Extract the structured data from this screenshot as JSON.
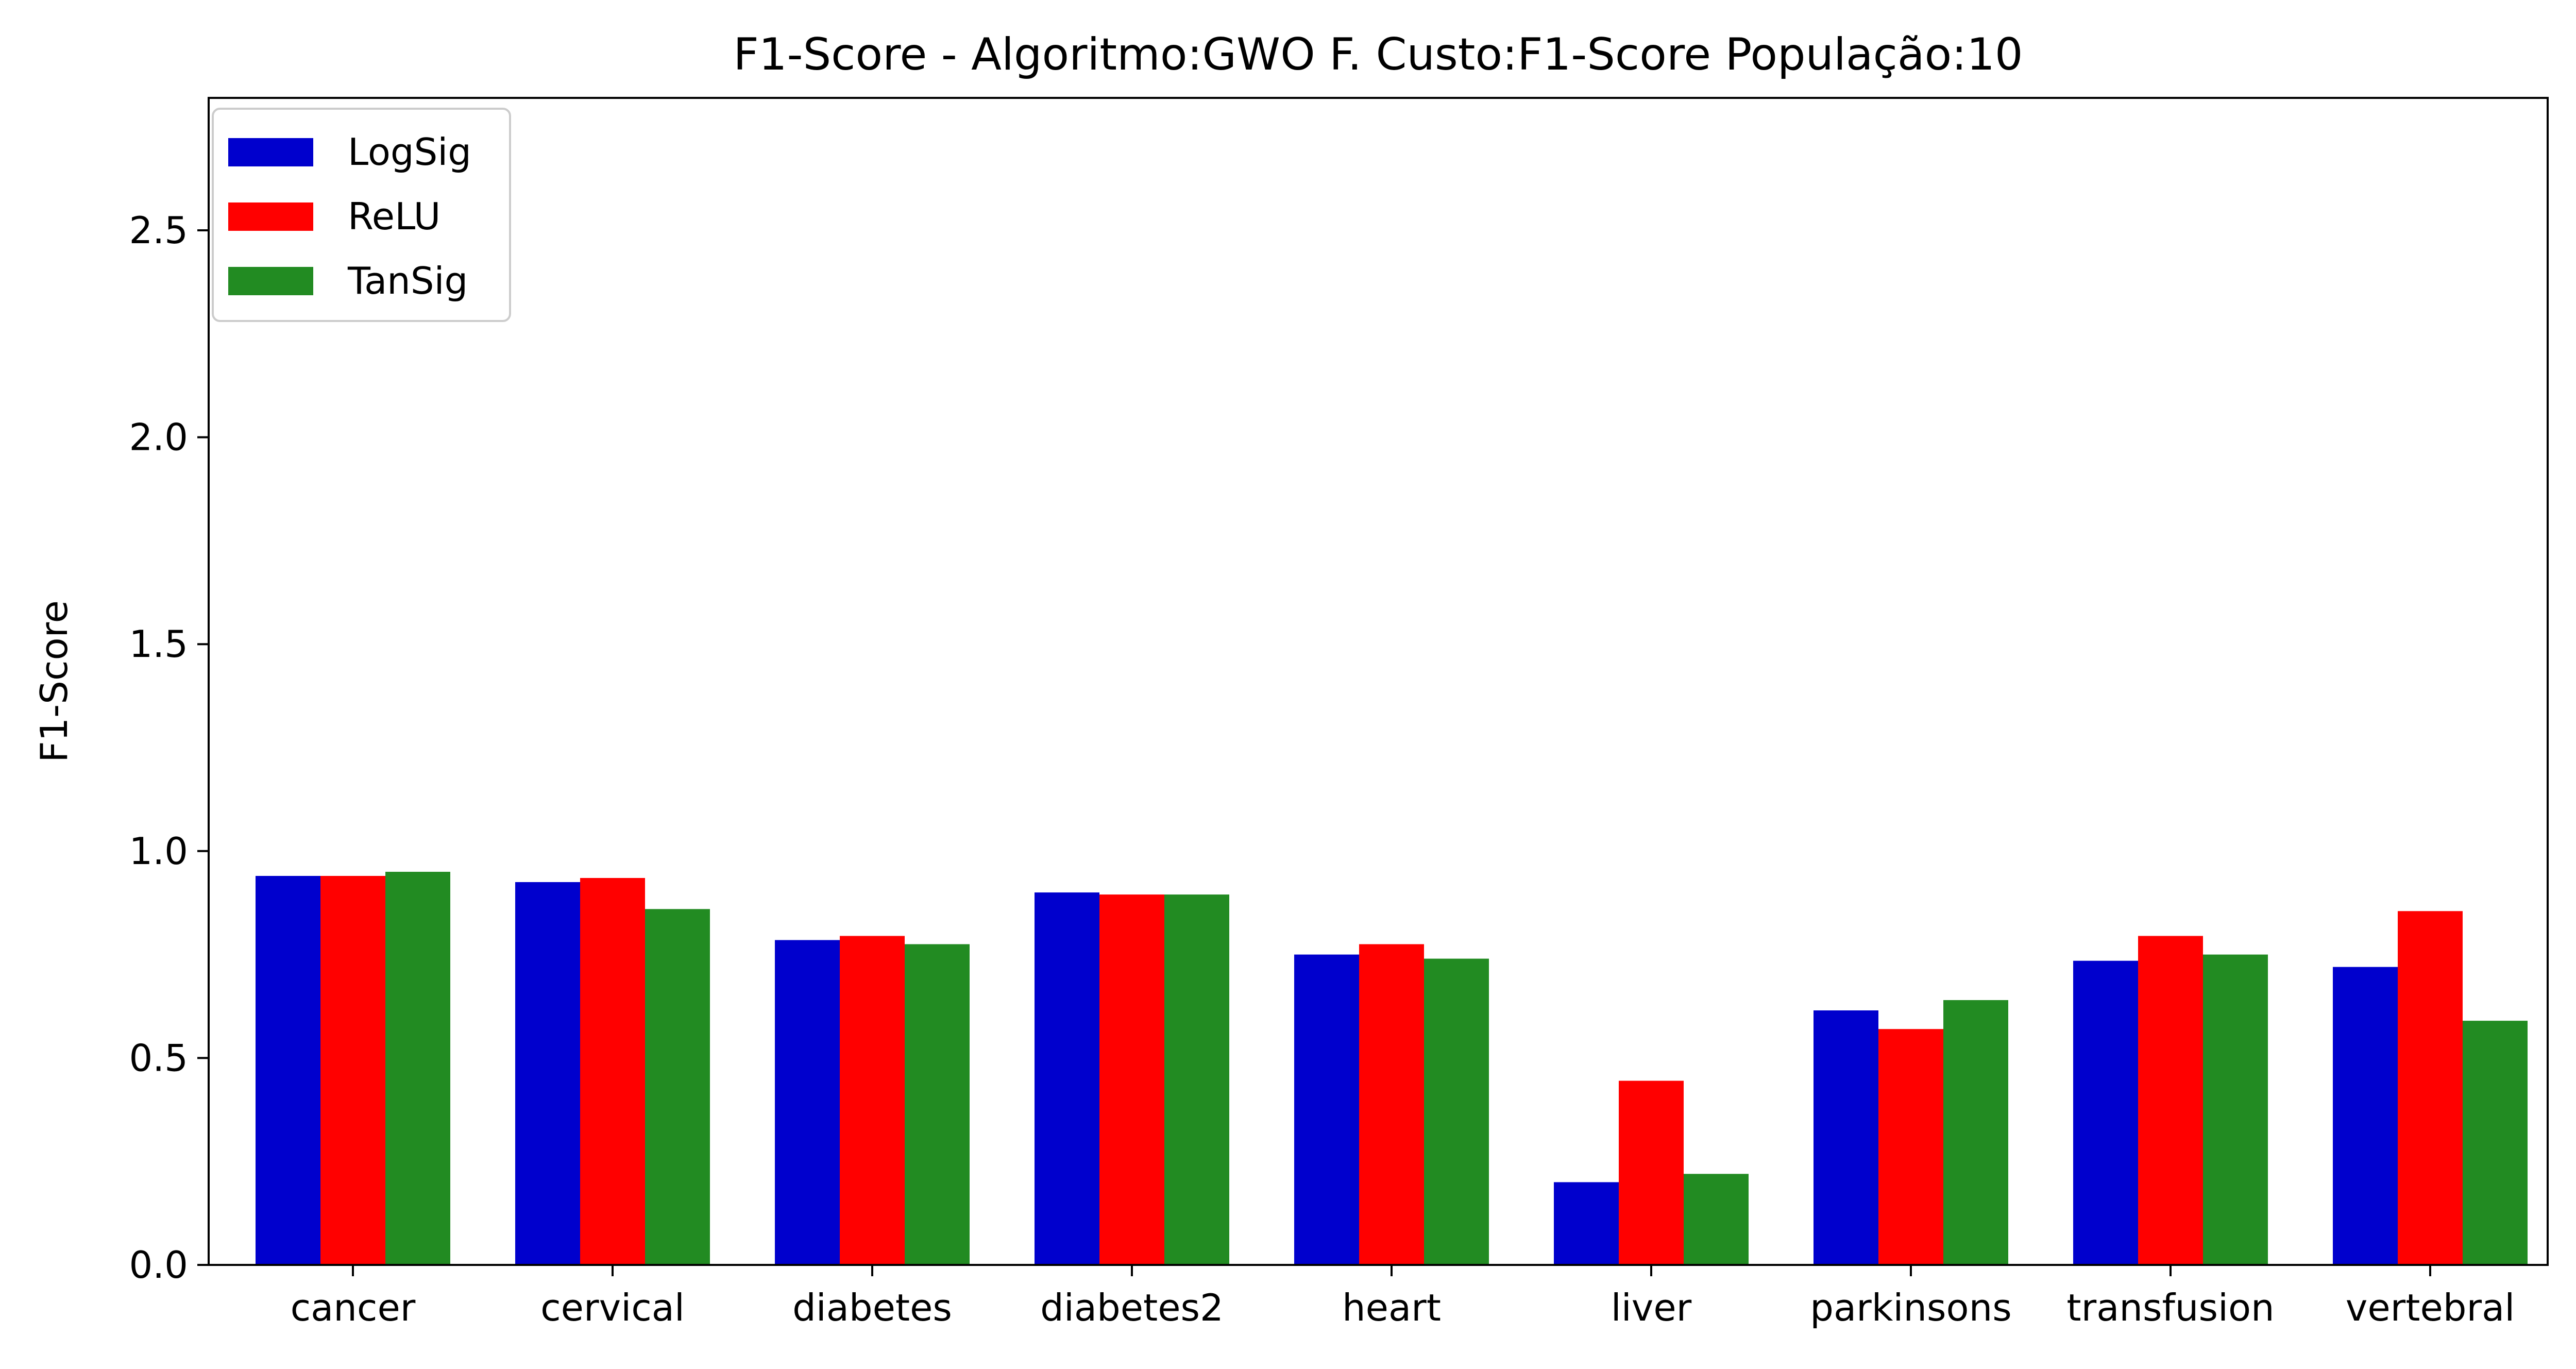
{
  "chart_data": {
    "type": "bar",
    "title": "F1-Score - Algoritmo:GWO F. Custo:F1-Score População:10",
    "xlabel": "",
    "ylabel": "F1-Score",
    "ylim": [
      0,
      2.82
    ],
    "yticks": [
      "0.0",
      "0.5",
      "1.0",
      "1.5",
      "2.0",
      "2.5"
    ],
    "ytick_values": [
      0,
      0.5,
      1.0,
      1.5,
      2.0,
      2.5
    ],
    "grid": false,
    "legend_position": "top-left",
    "categories": [
      "cancer",
      "cervical",
      "diabetes",
      "diabetes2",
      "heart",
      "liver",
      "parkinsons",
      "transfusion",
      "vertebral"
    ],
    "series": [
      {
        "name": "LogSig",
        "color": "#0000cd",
        "values": [
          0.94,
          0.925,
          0.785,
          0.9,
          0.75,
          0.2,
          0.615,
          0.735,
          0.72
        ]
      },
      {
        "name": "ReLU",
        "color": "#ff0000",
        "values": [
          0.94,
          0.935,
          0.795,
          0.895,
          0.775,
          0.445,
          0.57,
          0.795,
          0.855
        ]
      },
      {
        "name": "TanSig",
        "color": "#228b22",
        "values": [
          0.95,
          0.86,
          0.775,
          0.895,
          0.74,
          0.22,
          0.64,
          0.75,
          0.59
        ]
      }
    ]
  }
}
